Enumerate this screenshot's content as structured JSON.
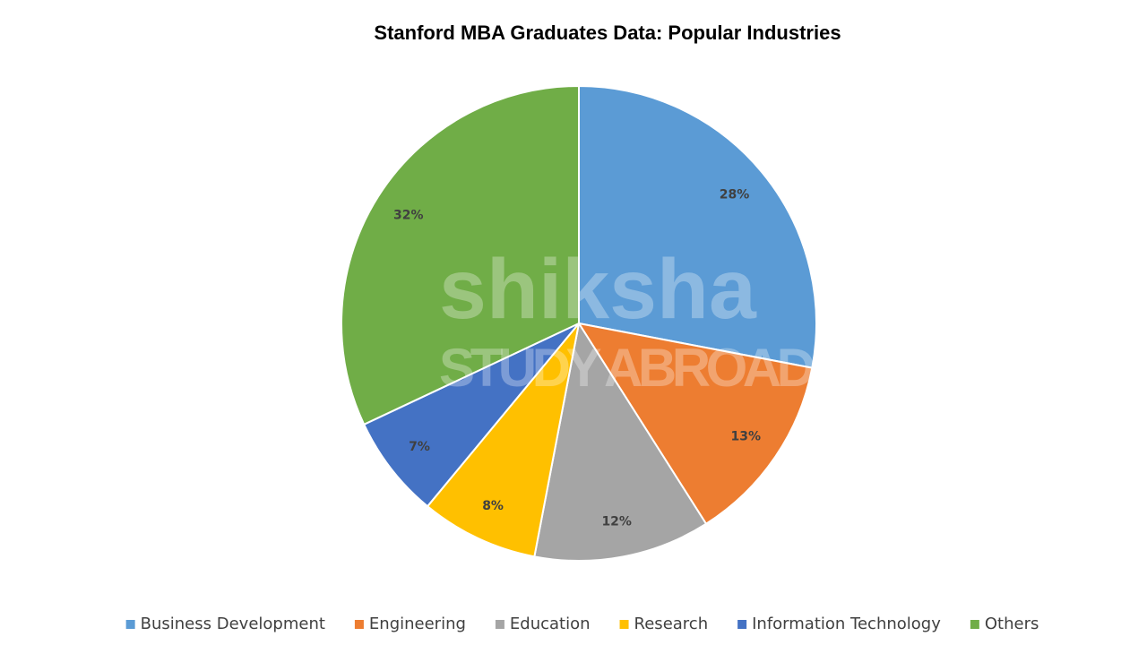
{
  "chart_data": {
    "type": "pie",
    "title": "Stanford MBA Graduates Data: Popular Industries",
    "categories": [
      "Business Development",
      "Engineering",
      "Education",
      "Research",
      "Information Technology",
      "Others"
    ],
    "values": [
      28,
      13,
      12,
      8,
      7,
      32
    ],
    "value_labels": [
      "28%",
      "13%",
      "12%",
      "8%",
      "7%",
      "32%"
    ],
    "colors": [
      "#5b9bd5",
      "#ed7d31",
      "#a5a5a5",
      "#ffc000",
      "#4472c4",
      "#70ad47"
    ],
    "legend": "bottom",
    "watermark": "shiksha",
    "watermark_subtitle": "STUDY ABROAD"
  }
}
